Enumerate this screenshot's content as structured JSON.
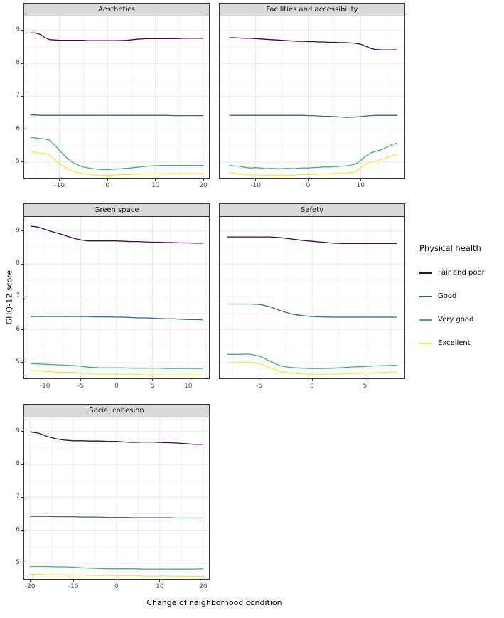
{
  "chart_data": {
    "type": "line",
    "title": "",
    "xlabel": "Change of neighborhood condition",
    "ylabel": "GHQ-12 score",
    "legend_title": "Physical health",
    "legend_position": "right",
    "grid": true,
    "ylim": [
      4.5,
      9.45
    ],
    "yticks": [
      5,
      6,
      7,
      8,
      9
    ],
    "series_names": [
      "Fair and poor",
      "Good",
      "Very good",
      "Excellent"
    ],
    "series_colors": [
      "#440154",
      "#31688E",
      "#35B779",
      "#FDE725"
    ],
    "panels": [
      {
        "title": "Aesthetics",
        "xlim": [
          -17.5,
          21.3
        ],
        "xticks": [
          -10,
          0,
          10,
          20
        ],
        "show_y_labels": true,
        "x": [
          -16,
          -15,
          -14,
          -13,
          -12,
          -11,
          -10,
          -9,
          -8,
          -7,
          -6,
          -5,
          -4,
          -3,
          -2,
          -1,
          0,
          1,
          2,
          4,
          6,
          8,
          10,
          12,
          14,
          16,
          18,
          20
        ],
        "series": [
          {
            "name": "Fair and poor",
            "values": [
              8.93,
              8.92,
              8.88,
              8.78,
              8.72,
              8.71,
              8.7,
              8.7,
              8.7,
              8.7,
              8.7,
              8.7,
              8.69,
              8.69,
              8.69,
              8.69,
              8.69,
              8.69,
              8.69,
              8.7,
              8.73,
              8.75,
              8.75,
              8.75,
              8.75,
              8.76,
              8.76,
              8.76
            ]
          },
          {
            "name": "Good",
            "values": [
              6.43,
              6.43,
              6.42,
              6.42,
              6.42,
              6.42,
              6.42,
              6.42,
              6.42,
              6.42,
              6.42,
              6.42,
              6.42,
              6.42,
              6.42,
              6.42,
              6.42,
              6.42,
              6.42,
              6.42,
              6.42,
              6.42,
              6.42,
              6.42,
              6.41,
              6.41,
              6.41,
              6.41
            ]
          },
          {
            "name": "Very good",
            "values": [
              5.75,
              5.73,
              5.71,
              5.7,
              5.66,
              5.52,
              5.36,
              5.2,
              5.07,
              4.97,
              4.9,
              4.85,
              4.82,
              4.8,
              4.78,
              4.77,
              4.77,
              4.78,
              4.79,
              4.81,
              4.84,
              4.87,
              4.89,
              4.9,
              4.9,
              4.9,
              4.9,
              4.9
            ]
          },
          {
            "name": "Excellent",
            "values": [
              5.3,
              5.29,
              5.27,
              5.26,
              5.21,
              5.07,
              4.95,
              4.85,
              4.77,
              4.71,
              4.67,
              4.64,
              4.62,
              4.61,
              4.6,
              4.6,
              4.6,
              4.6,
              4.61,
              4.62,
              4.63,
              4.64,
              4.64,
              4.65,
              4.65,
              4.65,
              4.65,
              4.65
            ]
          }
        ]
      },
      {
        "title": "Facilities and accessibility",
        "xlim": [
          -17.0,
          18.5
        ],
        "xticks": [
          -10,
          0,
          10
        ],
        "show_y_labels": false,
        "x": [
          -15,
          -14,
          -13,
          -12,
          -11,
          -10,
          -9,
          -8,
          -7,
          -6,
          -5,
          -4,
          -3,
          -2,
          -1,
          0,
          1,
          2,
          3,
          4,
          5,
          6,
          7,
          8,
          9,
          10,
          11,
          12,
          13,
          14,
          15,
          16,
          17
        ],
        "series": [
          {
            "name": "Fair and poor",
            "values": [
              8.78,
              8.78,
              8.77,
              8.76,
              8.76,
              8.75,
              8.74,
              8.73,
              8.72,
              8.71,
              8.7,
              8.69,
              8.68,
              8.67,
              8.67,
              8.66,
              8.66,
              8.65,
              8.65,
              8.64,
              8.64,
              8.63,
              8.63,
              8.62,
              8.61,
              8.58,
              8.52,
              8.45,
              8.42,
              8.41,
              8.41,
              8.41,
              8.41
            ]
          },
          {
            "name": "Good",
            "values": [
              6.42,
              6.42,
              6.42,
              6.42,
              6.42,
              6.42,
              6.42,
              6.42,
              6.42,
              6.42,
              6.42,
              6.42,
              6.42,
              6.42,
              6.42,
              6.41,
              6.41,
              6.4,
              6.39,
              6.39,
              6.38,
              6.37,
              6.36,
              6.36,
              6.37,
              6.38,
              6.4,
              6.41,
              6.42,
              6.42,
              6.42,
              6.42,
              6.42
            ]
          },
          {
            "name": "Very good",
            "values": [
              4.9,
              4.88,
              4.87,
              4.84,
              4.82,
              4.83,
              4.82,
              4.8,
              4.81,
              4.8,
              4.8,
              4.81,
              4.8,
              4.81,
              4.82,
              4.82,
              4.83,
              4.84,
              4.85,
              4.85,
              4.86,
              4.87,
              4.88,
              4.9,
              4.94,
              5.04,
              5.18,
              5.28,
              5.33,
              5.38,
              5.45,
              5.53,
              5.57
            ]
          },
          {
            "name": "Excellent",
            "values": [
              4.68,
              4.66,
              4.64,
              4.62,
              4.6,
              4.62,
              4.6,
              4.59,
              4.6,
              4.59,
              4.59,
              4.6,
              4.6,
              4.61,
              4.62,
              4.62,
              4.62,
              4.63,
              4.64,
              4.64,
              4.65,
              4.66,
              4.67,
              4.68,
              4.71,
              4.82,
              4.95,
              5.01,
              5.04,
              5.08,
              5.13,
              5.19,
              5.22
            ]
          }
        ]
      },
      {
        "title": "Green space",
        "xlim": [
          -13.0,
          13.0
        ],
        "xticks": [
          -10,
          -5,
          0,
          5,
          10
        ],
        "show_y_labels": true,
        "x": [
          -12,
          -11,
          -10,
          -9,
          -8,
          -7,
          -6,
          -5,
          -4,
          -3,
          -2,
          -1,
          0,
          1,
          2,
          3,
          4,
          5,
          6,
          7,
          8,
          9,
          10,
          11,
          12
        ],
        "series": [
          {
            "name": "Fair and poor",
            "values": [
              9.15,
              9.12,
              9.05,
              8.98,
              8.92,
              8.85,
              8.78,
              8.73,
              8.7,
              8.7,
              8.7,
              8.7,
              8.7,
              8.69,
              8.68,
              8.68,
              8.67,
              8.66,
              8.66,
              8.65,
              8.65,
              8.64,
              8.64,
              8.63,
              8.63
            ]
          },
          {
            "name": "Good",
            "values": [
              6.4,
              6.4,
              6.4,
              6.4,
              6.4,
              6.4,
              6.4,
              6.4,
              6.4,
              6.39,
              6.39,
              6.39,
              6.38,
              6.38,
              6.37,
              6.36,
              6.36,
              6.35,
              6.34,
              6.33,
              6.33,
              6.32,
              6.31,
              6.31,
              6.3
            ]
          },
          {
            "name": "Very good",
            "values": [
              4.97,
              4.96,
              4.95,
              4.94,
              4.93,
              4.92,
              4.91,
              4.89,
              4.86,
              4.85,
              4.84,
              4.84,
              4.84,
              4.84,
              4.83,
              4.83,
              4.83,
              4.83,
              4.83,
              4.82,
              4.82,
              4.82,
              4.82,
              4.82,
              4.82
            ]
          },
          {
            "name": "Excellent",
            "values": [
              4.76,
              4.75,
              4.73,
              4.72,
              4.71,
              4.7,
              4.7,
              4.68,
              4.66,
              4.65,
              4.65,
              4.65,
              4.65,
              4.64,
              4.64,
              4.64,
              4.63,
              4.63,
              4.63,
              4.62,
              4.62,
              4.62,
              4.62,
              4.62,
              4.62
            ]
          }
        ]
      },
      {
        "title": "Safety",
        "xlim": [
          -8.8,
          8.8
        ],
        "xticks": [
          -5,
          0,
          5
        ],
        "show_y_labels": false,
        "x": [
          -8,
          -7,
          -6,
          -5,
          -4,
          -3,
          -2,
          -1,
          0,
          1,
          2,
          3,
          4,
          5,
          6,
          7,
          8
        ],
        "series": [
          {
            "name": "Fair and poor",
            "values": [
              8.82,
              8.82,
              8.82,
              8.82,
              8.82,
              8.8,
              8.76,
              8.72,
              8.69,
              8.66,
              8.63,
              8.62,
              8.62,
              8.62,
              8.62,
              8.62,
              8.62
            ]
          },
          {
            "name": "Good",
            "values": [
              6.78,
              6.78,
              6.78,
              6.77,
              6.7,
              6.58,
              6.48,
              6.43,
              6.4,
              6.39,
              6.38,
              6.38,
              6.38,
              6.38,
              6.38,
              6.38,
              6.38
            ]
          },
          {
            "name": "Very good",
            "values": [
              5.25,
              5.25,
              5.26,
              5.2,
              5.05,
              4.9,
              4.85,
              4.83,
              4.82,
              4.82,
              4.83,
              4.85,
              4.87,
              4.88,
              4.9,
              4.91,
              4.92
            ]
          },
          {
            "name": "Excellent",
            "values": [
              5.0,
              5.0,
              5.01,
              4.97,
              4.85,
              4.73,
              4.68,
              4.66,
              4.64,
              4.64,
              4.65,
              4.66,
              4.67,
              4.68,
              4.69,
              4.7,
              4.7
            ]
          }
        ]
      },
      {
        "title": "Social cohesion",
        "xlim": [
          -21.5,
          21.5
        ],
        "xticks": [
          -20,
          -10,
          0,
          10,
          20
        ],
        "show_y_labels": true,
        "x": [
          -20,
          -18,
          -16,
          -14,
          -12,
          -10,
          -8,
          -6,
          -4,
          -2,
          0,
          2,
          4,
          6,
          8,
          10,
          12,
          14,
          16,
          18,
          20
        ],
        "series": [
          {
            "name": "Fair and poor",
            "values": [
              8.99,
              8.95,
              8.85,
              8.78,
              8.74,
              8.72,
              8.72,
              8.71,
              8.71,
              8.7,
              8.7,
              8.68,
              8.67,
              8.68,
              8.68,
              8.67,
              8.66,
              8.65,
              8.63,
              8.61,
              8.61
            ]
          },
          {
            "name": "Good",
            "values": [
              6.42,
              6.42,
              6.42,
              6.41,
              6.41,
              6.41,
              6.4,
              6.4,
              6.4,
              6.39,
              6.39,
              6.39,
              6.38,
              6.38,
              6.38,
              6.38,
              6.38,
              6.37,
              6.37,
              6.37,
              6.37
            ]
          },
          {
            "name": "Very good",
            "values": [
              4.9,
              4.9,
              4.9,
              4.89,
              4.89,
              4.88,
              4.86,
              4.85,
              4.84,
              4.83,
              4.83,
              4.83,
              4.83,
              4.82,
              4.82,
              4.82,
              4.82,
              4.82,
              4.82,
              4.82,
              4.83
            ]
          },
          {
            "name": "Excellent",
            "values": [
              4.66,
              4.66,
              4.65,
              4.65,
              4.65,
              4.64,
              4.64,
              4.63,
              4.63,
              4.62,
              4.62,
              4.62,
              4.62,
              4.61,
              4.61,
              4.61,
              4.61,
              4.6,
              4.6,
              4.6,
              4.6
            ]
          }
        ]
      }
    ]
  }
}
